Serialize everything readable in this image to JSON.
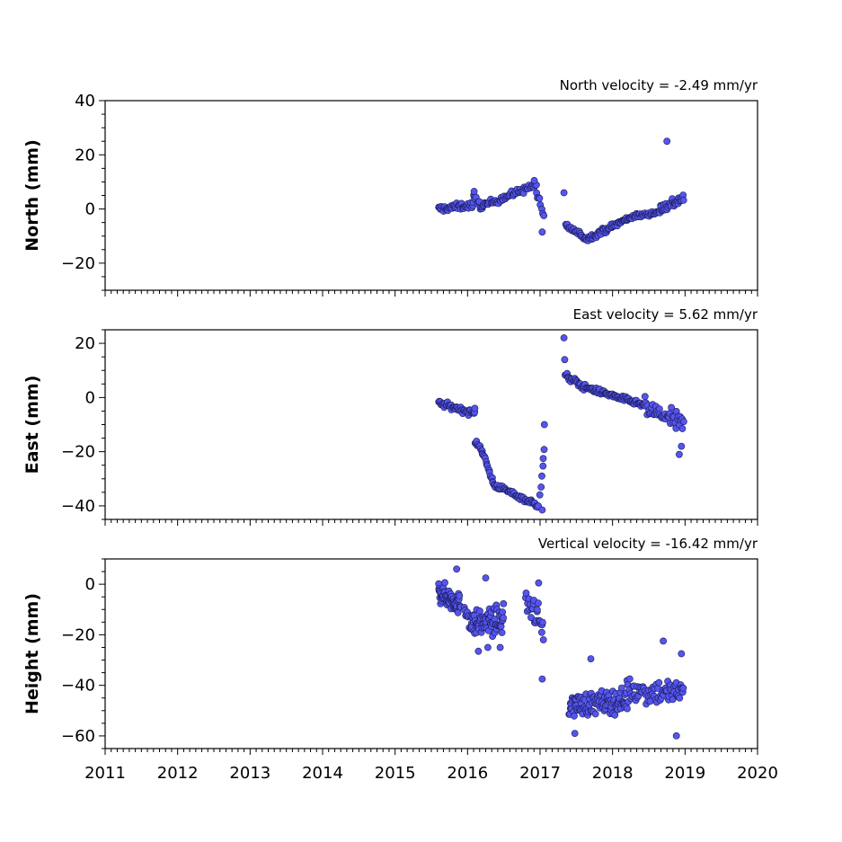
{
  "chart_data": [
    {
      "type": "scatter",
      "title": "North velocity = -2.49 mm/yr",
      "ylabel": "North (mm)",
      "xlim": [
        2011,
        2020
      ],
      "ylim": [
        -30,
        40
      ],
      "yticks": [
        -20,
        0,
        20,
        40
      ],
      "ytick_labels": [
        "−20",
        "0",
        "20",
        "40"
      ],
      "marker_color": "#5555ee",
      "segments": [
        {
          "x_start": 2015.6,
          "x_end": 2016.08,
          "y_start": 0,
          "y_end": 1.5,
          "noise": 1.2,
          "count": 45
        },
        {
          "x_start": 2016.08,
          "x_end": 2016.2,
          "y_start": 4,
          "y_end": 1,
          "noise": 1.5,
          "count": 10
        },
        {
          "x_start": 2016.2,
          "x_end": 2016.95,
          "y_start": 1,
          "y_end": 9,
          "noise": 1.2,
          "count": 60
        },
        {
          "x_start": 2016.95,
          "x_end": 2017.05,
          "y_start": 6,
          "y_end": -3,
          "noise": 1.5,
          "count": 8
        },
        {
          "x_start": 2017.35,
          "x_end": 2017.65,
          "y_start": -6,
          "y_end": -11,
          "noise": 1.0,
          "count": 25
        },
        {
          "x_start": 2017.65,
          "x_end": 2018.25,
          "y_start": -11,
          "y_end": -3,
          "noise": 1.0,
          "count": 60
        },
        {
          "x_start": 2018.25,
          "x_end": 2018.65,
          "y_start": -3,
          "y_end": -1,
          "noise": 0.8,
          "count": 35
        },
        {
          "x_start": 2018.65,
          "x_end": 2018.98,
          "y_start": 0,
          "y_end": 4,
          "noise": 2.0,
          "count": 35
        }
      ],
      "points": [
        {
          "x": 2017.03,
          "y": -8.5
        },
        {
          "x": 2017.33,
          "y": 6
        },
        {
          "x": 2018.75,
          "y": 25
        },
        {
          "x": 2016.92,
          "y": 10.5
        },
        {
          "x": 2016.09,
          "y": 6.5
        }
      ]
    },
    {
      "type": "scatter",
      "title": "East velocity = 5.62 mm/yr",
      "ylabel": "East (mm)",
      "xlim": [
        2011,
        2020
      ],
      "ylim": [
        -45,
        25
      ],
      "yticks": [
        -40,
        -20,
        0,
        20
      ],
      "ytick_labels": [
        "−40",
        "−20",
        "0",
        "20"
      ],
      "marker_color": "#5555ee",
      "segments": [
        {
          "x_start": 2015.6,
          "x_end": 2016.1,
          "y_start": -2,
          "y_end": -6,
          "noise": 1.0,
          "count": 45
        },
        {
          "x_start": 2016.1,
          "x_end": 2016.2,
          "y_start": -16,
          "y_end": -19,
          "noise": 1.2,
          "count": 10
        },
        {
          "x_start": 2016.2,
          "x_end": 2016.35,
          "y_start": -20,
          "y_end": -31,
          "noise": 1.2,
          "count": 15
        },
        {
          "x_start": 2016.35,
          "x_end": 2016.98,
          "y_start": -32,
          "y_end": -40,
          "noise": 0.9,
          "count": 55
        },
        {
          "x_start": 2017.0,
          "x_end": 2017.06,
          "y_start": -35,
          "y_end": -20,
          "noise": 2.0,
          "count": 6
        },
        {
          "x_start": 2017.35,
          "x_end": 2017.6,
          "y_start": 8,
          "y_end": 4,
          "noise": 1.2,
          "count": 25
        },
        {
          "x_start": 2017.6,
          "x_end": 2018.45,
          "y_start": 4,
          "y_end": -3,
          "noise": 0.9,
          "count": 80
        },
        {
          "x_start": 2018.45,
          "x_end": 2018.98,
          "y_start": -4,
          "y_end": -10,
          "noise": 3.5,
          "count": 45
        }
      ],
      "points": [
        {
          "x": 2017.33,
          "y": 22
        },
        {
          "x": 2017.34,
          "y": 14
        },
        {
          "x": 2017.06,
          "y": -10
        },
        {
          "x": 2018.95,
          "y": -18
        },
        {
          "x": 2018.92,
          "y": -21
        },
        {
          "x": 2016.1,
          "y": -4
        },
        {
          "x": 2017.03,
          "y": -41.5
        }
      ]
    },
    {
      "type": "scatter",
      "title": "Vertical velocity = -16.42 mm/yr",
      "ylabel": "Height (mm)",
      "xlim": [
        2011,
        2020
      ],
      "ylim": [
        -65,
        10
      ],
      "yticks": [
        -60,
        -40,
        -20,
        0
      ],
      "ytick_labels": [
        "−60",
        "−40",
        "−20",
        "0"
      ],
      "xticks": [
        2011,
        2012,
        2013,
        2014,
        2015,
        2016,
        2017,
        2018,
        2019,
        2020
      ],
      "xtick_labels": [
        "2011",
        "2012",
        "2013",
        "2014",
        "2015",
        "2016",
        "2017",
        "2018",
        "2019",
        "2020"
      ],
      "marker_color": "#5555ee",
      "segments": [
        {
          "x_start": 2015.6,
          "x_end": 2015.9,
          "y_start": -3,
          "y_end": -8,
          "noise": 4.0,
          "count": 70
        },
        {
          "x_start": 2015.95,
          "x_end": 2016.05,
          "y_start": -8,
          "y_end": -14,
          "noise": 5.0,
          "count": 10
        },
        {
          "x_start": 2016.05,
          "x_end": 2016.5,
          "y_start": -16,
          "y_end": -14,
          "noise": 5.0,
          "count": 75
        },
        {
          "x_start": 2016.8,
          "x_end": 2017.05,
          "y_start": -5,
          "y_end": -18,
          "noise": 6.0,
          "count": 25
        },
        {
          "x_start": 2017.4,
          "x_end": 2018.2,
          "y_start": -48,
          "y_end": -46,
          "noise": 4.5,
          "count": 110
        },
        {
          "x_start": 2018.2,
          "x_end": 2018.98,
          "y_start": -42,
          "y_end": -43,
          "noise": 5.0,
          "count": 75
        }
      ],
      "points": [
        {
          "x": 2015.85,
          "y": 6
        },
        {
          "x": 2016.25,
          "y": 2.5
        },
        {
          "x": 2016.98,
          "y": 0.5
        },
        {
          "x": 2017.03,
          "y": -37.5
        },
        {
          "x": 2018.7,
          "y": -22.5
        },
        {
          "x": 2017.7,
          "y": -29.5
        },
        {
          "x": 2017.48,
          "y": -59
        },
        {
          "x": 2018.88,
          "y": -60
        },
        {
          "x": 2018.95,
          "y": -27.5
        },
        {
          "x": 2016.28,
          "y": -25
        },
        {
          "x": 2016.45,
          "y": -25
        },
        {
          "x": 2016.15,
          "y": -26.5
        }
      ]
    }
  ]
}
